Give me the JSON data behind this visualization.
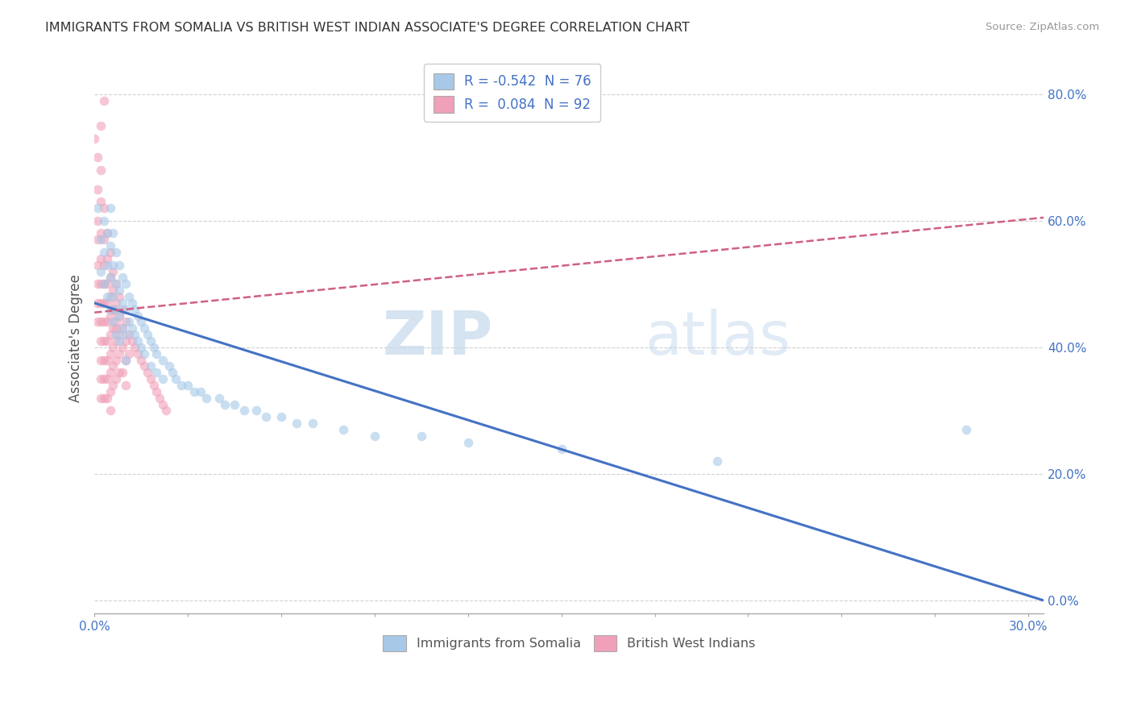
{
  "title": "IMMIGRANTS FROM SOMALIA VS BRITISH WEST INDIAN ASSOCIATE'S DEGREE CORRELATION CHART",
  "source": "Source: ZipAtlas.com",
  "ylabel": "Associate's Degree",
  "blue_color": "#a8c8e8",
  "pink_color": "#f0a0b8",
  "blue_line_color": "#4472c4",
  "pink_line_color": "#d06080",
  "watermark_zip": "ZIP",
  "watermark_atlas": "atlas",
  "bg_color": "#ffffff",
  "grid_color": "#cccccc",
  "scatter_size": 70,
  "scatter_alpha": 0.6,
  "xlim": [
    0.0,
    0.305
  ],
  "ylim": [
    -0.02,
    0.85
  ],
  "yticks": [
    0.0,
    0.2,
    0.4,
    0.6,
    0.8
  ],
  "ytick_labels": [
    "0.0%",
    "20.0%",
    "40.0%",
    "60.0%",
    "80.0%"
  ],
  "xticks": [
    0.0,
    0.03,
    0.06,
    0.09,
    0.12,
    0.15,
    0.18,
    0.21,
    0.24,
    0.27,
    0.3
  ],
  "xtick_labels": [
    "0.0%",
    "",
    "",
    "",
    "",
    "",
    "",
    "",
    "",
    "",
    "30.0%"
  ],
  "legend_blue_label": "R = -0.542  N = 76",
  "legend_pink_label": "R =  0.084  N = 92",
  "bottom_legend_blue": "Immigrants from Somalia",
  "bottom_legend_pink": "British West Indians",
  "blue_line_y0": 0.47,
  "blue_line_y1": 0.0,
  "pink_line_y0": 0.455,
  "pink_line_y1": 0.605,
  "blue_scatter": [
    [
      0.001,
      0.62
    ],
    [
      0.002,
      0.57
    ],
    [
      0.002,
      0.52
    ],
    [
      0.003,
      0.6
    ],
    [
      0.003,
      0.55
    ],
    [
      0.003,
      0.5
    ],
    [
      0.004,
      0.58
    ],
    [
      0.004,
      0.53
    ],
    [
      0.004,
      0.48
    ],
    [
      0.005,
      0.62
    ],
    [
      0.005,
      0.56
    ],
    [
      0.005,
      0.51
    ],
    [
      0.005,
      0.46
    ],
    [
      0.006,
      0.58
    ],
    [
      0.006,
      0.53
    ],
    [
      0.006,
      0.48
    ],
    [
      0.006,
      0.44
    ],
    [
      0.007,
      0.55
    ],
    [
      0.007,
      0.5
    ],
    [
      0.007,
      0.46
    ],
    [
      0.007,
      0.42
    ],
    [
      0.008,
      0.53
    ],
    [
      0.008,
      0.49
    ],
    [
      0.008,
      0.45
    ],
    [
      0.008,
      0.41
    ],
    [
      0.009,
      0.51
    ],
    [
      0.009,
      0.47
    ],
    [
      0.009,
      0.43
    ],
    [
      0.01,
      0.5
    ],
    [
      0.01,
      0.46
    ],
    [
      0.01,
      0.42
    ],
    [
      0.01,
      0.38
    ],
    [
      0.011,
      0.48
    ],
    [
      0.011,
      0.44
    ],
    [
      0.012,
      0.47
    ],
    [
      0.012,
      0.43
    ],
    [
      0.013,
      0.46
    ],
    [
      0.013,
      0.42
    ],
    [
      0.014,
      0.45
    ],
    [
      0.014,
      0.41
    ],
    [
      0.015,
      0.44
    ],
    [
      0.015,
      0.4
    ],
    [
      0.016,
      0.43
    ],
    [
      0.016,
      0.39
    ],
    [
      0.017,
      0.42
    ],
    [
      0.018,
      0.41
    ],
    [
      0.018,
      0.37
    ],
    [
      0.019,
      0.4
    ],
    [
      0.02,
      0.39
    ],
    [
      0.02,
      0.36
    ],
    [
      0.022,
      0.38
    ],
    [
      0.022,
      0.35
    ],
    [
      0.024,
      0.37
    ],
    [
      0.025,
      0.36
    ],
    [
      0.026,
      0.35
    ],
    [
      0.028,
      0.34
    ],
    [
      0.03,
      0.34
    ],
    [
      0.032,
      0.33
    ],
    [
      0.034,
      0.33
    ],
    [
      0.036,
      0.32
    ],
    [
      0.04,
      0.32
    ],
    [
      0.042,
      0.31
    ],
    [
      0.045,
      0.31
    ],
    [
      0.048,
      0.3
    ],
    [
      0.052,
      0.3
    ],
    [
      0.055,
      0.29
    ],
    [
      0.06,
      0.29
    ],
    [
      0.065,
      0.28
    ],
    [
      0.07,
      0.28
    ],
    [
      0.08,
      0.27
    ],
    [
      0.09,
      0.26
    ],
    [
      0.105,
      0.26
    ],
    [
      0.12,
      0.25
    ],
    [
      0.15,
      0.24
    ],
    [
      0.2,
      0.22
    ],
    [
      0.28,
      0.27
    ]
  ],
  "pink_scatter": [
    [
      0.0,
      0.73
    ],
    [
      0.001,
      0.7
    ],
    [
      0.001,
      0.65
    ],
    [
      0.001,
      0.6
    ],
    [
      0.001,
      0.57
    ],
    [
      0.001,
      0.53
    ],
    [
      0.001,
      0.5
    ],
    [
      0.001,
      0.47
    ],
    [
      0.001,
      0.44
    ],
    [
      0.002,
      0.68
    ],
    [
      0.002,
      0.63
    ],
    [
      0.002,
      0.58
    ],
    [
      0.002,
      0.54
    ],
    [
      0.002,
      0.5
    ],
    [
      0.002,
      0.47
    ],
    [
      0.002,
      0.44
    ],
    [
      0.002,
      0.41
    ],
    [
      0.002,
      0.38
    ],
    [
      0.002,
      0.35
    ],
    [
      0.002,
      0.32
    ],
    [
      0.003,
      0.62
    ],
    [
      0.003,
      0.57
    ],
    [
      0.003,
      0.53
    ],
    [
      0.003,
      0.5
    ],
    [
      0.003,
      0.47
    ],
    [
      0.003,
      0.44
    ],
    [
      0.003,
      0.41
    ],
    [
      0.003,
      0.38
    ],
    [
      0.003,
      0.35
    ],
    [
      0.003,
      0.32
    ],
    [
      0.004,
      0.58
    ],
    [
      0.004,
      0.54
    ],
    [
      0.004,
      0.5
    ],
    [
      0.004,
      0.47
    ],
    [
      0.004,
      0.44
    ],
    [
      0.004,
      0.41
    ],
    [
      0.004,
      0.38
    ],
    [
      0.004,
      0.35
    ],
    [
      0.004,
      0.32
    ],
    [
      0.005,
      0.55
    ],
    [
      0.005,
      0.51
    ],
    [
      0.005,
      0.48
    ],
    [
      0.005,
      0.45
    ],
    [
      0.005,
      0.42
    ],
    [
      0.005,
      0.39
    ],
    [
      0.005,
      0.36
    ],
    [
      0.005,
      0.33
    ],
    [
      0.005,
      0.3
    ],
    [
      0.006,
      0.52
    ],
    [
      0.006,
      0.49
    ],
    [
      0.006,
      0.46
    ],
    [
      0.006,
      0.43
    ],
    [
      0.006,
      0.4
    ],
    [
      0.006,
      0.37
    ],
    [
      0.006,
      0.34
    ],
    [
      0.007,
      0.5
    ],
    [
      0.007,
      0.47
    ],
    [
      0.007,
      0.44
    ],
    [
      0.007,
      0.41
    ],
    [
      0.007,
      0.38
    ],
    [
      0.007,
      0.35
    ],
    [
      0.008,
      0.48
    ],
    [
      0.008,
      0.45
    ],
    [
      0.008,
      0.42
    ],
    [
      0.008,
      0.39
    ],
    [
      0.008,
      0.36
    ],
    [
      0.009,
      0.46
    ],
    [
      0.009,
      0.43
    ],
    [
      0.009,
      0.4
    ],
    [
      0.01,
      0.44
    ],
    [
      0.01,
      0.41
    ],
    [
      0.01,
      0.38
    ],
    [
      0.011,
      0.42
    ],
    [
      0.011,
      0.39
    ],
    [
      0.012,
      0.41
    ],
    [
      0.013,
      0.4
    ],
    [
      0.014,
      0.39
    ],
    [
      0.015,
      0.38
    ],
    [
      0.016,
      0.37
    ],
    [
      0.017,
      0.36
    ],
    [
      0.018,
      0.35
    ],
    [
      0.019,
      0.34
    ],
    [
      0.02,
      0.33
    ],
    [
      0.021,
      0.32
    ],
    [
      0.022,
      0.31
    ],
    [
      0.023,
      0.3
    ],
    [
      0.003,
      0.79
    ],
    [
      0.002,
      0.75
    ],
    [
      0.006,
      0.46
    ],
    [
      0.007,
      0.43
    ],
    [
      0.009,
      0.36
    ],
    [
      0.01,
      0.34
    ]
  ]
}
